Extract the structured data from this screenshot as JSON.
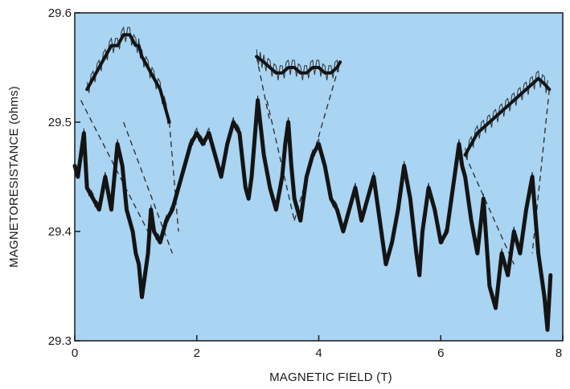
{
  "chart_data": {
    "type": "line",
    "title": "",
    "xlabel": "MAGNETIC FIELD (T)",
    "ylabel": "MAGNETORESISTANCE (ohms)",
    "xlim": [
      0,
      8
    ],
    "ylim": [
      29.3,
      29.6
    ],
    "xticks": [
      0,
      2,
      4,
      6,
      8
    ],
    "yticks": [
      29.3,
      29.4,
      29.5,
      29.6
    ],
    "xtick_labels": [
      "0",
      "2",
      "4",
      "6",
      "8"
    ],
    "ytick_labels": [
      "29.3",
      "29.4",
      "29.5",
      "29.6"
    ],
    "grid": false,
    "legend": "none",
    "colors": {
      "plot_background": "#a9d4f2",
      "trace": "#141414",
      "frame": "#1a1a1a"
    },
    "series": [
      {
        "x": [
          0,
          0.05,
          0.1,
          0.15,
          0.2,
          0.3,
          0.4,
          0.5,
          0.6,
          0.7,
          0.78,
          0.85,
          0.95,
          1.0,
          1.05,
          1.1,
          1.15,
          1.2,
          1.25,
          1.3,
          1.4,
          1.5,
          1.6,
          1.7,
          1.8,
          1.9,
          2.0,
          2.1,
          2.2,
          2.3,
          2.4,
          2.5,
          2.6,
          2.7,
          2.8,
          2.85,
          2.9,
          3.0,
          3.1,
          3.2,
          3.3,
          3.4,
          3.45,
          3.5,
          3.55,
          3.6,
          3.7,
          3.8,
          3.9,
          4.0,
          4.1,
          4.2,
          4.3,
          4.4,
          4.5,
          4.6,
          4.7,
          4.8,
          4.9,
          5.0,
          5.1,
          5.2,
          5.3,
          5.4,
          5.5,
          5.6,
          5.65,
          5.7,
          5.8,
          5.9,
          6.0,
          6.1,
          6.2,
          6.3,
          6.35,
          6.4,
          6.5,
          6.6,
          6.7,
          6.8,
          6.9,
          7.0,
          7.1,
          7.2,
          7.3,
          7.4,
          7.5,
          7.6,
          7.7,
          7.75,
          7.8
        ],
        "y": [
          29.46,
          29.45,
          29.47,
          29.49,
          29.44,
          29.43,
          29.42,
          29.45,
          29.42,
          29.48,
          29.46,
          29.42,
          29.4,
          29.38,
          29.37,
          29.34,
          29.36,
          29.38,
          29.42,
          29.4,
          29.39,
          29.41,
          29.42,
          29.44,
          29.46,
          29.48,
          29.49,
          29.48,
          29.49,
          29.47,
          29.45,
          29.48,
          29.5,
          29.49,
          29.44,
          29.43,
          29.45,
          29.52,
          29.47,
          29.44,
          29.42,
          29.45,
          29.48,
          29.5,
          29.46,
          29.43,
          29.41,
          29.45,
          29.47,
          29.48,
          29.46,
          29.43,
          29.42,
          29.4,
          29.42,
          29.44,
          29.41,
          29.43,
          29.45,
          29.41,
          29.37,
          29.39,
          29.42,
          29.46,
          29.43,
          29.38,
          29.36,
          29.4,
          29.44,
          29.42,
          29.39,
          29.4,
          29.44,
          29.48,
          29.46,
          29.45,
          29.41,
          29.38,
          29.43,
          29.35,
          29.33,
          29.38,
          29.36,
          29.4,
          29.38,
          29.42,
          29.45,
          29.38,
          29.34,
          29.31,
          29.36
        ]
      },
      {
        "x": [
          0.2,
          0.3,
          0.4,
          0.5,
          0.6,
          0.7,
          0.8,
          0.9,
          1.0,
          1.05,
          1.1,
          1.2,
          1.3,
          1.4,
          1.5,
          1.55
        ],
        "y": [
          29.53,
          29.54,
          29.55,
          29.56,
          29.57,
          29.57,
          29.58,
          29.58,
          29.57,
          29.57,
          29.56,
          29.55,
          29.54,
          29.53,
          29.51,
          29.5
        ]
      },
      {
        "x": [
          2.98,
          3.1,
          3.2,
          3.3,
          3.4,
          3.5,
          3.6,
          3.7,
          3.8,
          3.9,
          4.0,
          4.1,
          4.2,
          4.3,
          4.35
        ],
        "y": [
          29.56,
          29.555,
          29.55,
          29.545,
          29.545,
          29.55,
          29.55,
          29.545,
          29.545,
          29.55,
          29.55,
          29.545,
          29.545,
          29.55,
          29.555
        ]
      },
      {
        "x": [
          6.4,
          6.5,
          6.6,
          6.7,
          6.8,
          6.9,
          7.0,
          7.1,
          7.2,
          7.3,
          7.4,
          7.5,
          7.6,
          7.7,
          7.78
        ],
        "y": [
          29.47,
          29.48,
          29.49,
          29.495,
          29.5,
          29.505,
          29.51,
          29.515,
          29.52,
          29.525,
          29.53,
          29.535,
          29.54,
          29.535,
          29.53
        ]
      }
    ],
    "guides": [
      {
        "x": [
          0.1,
          1.2
        ],
        "y": [
          29.52,
          29.4
        ]
      },
      {
        "x": [
          0.8,
          1.6
        ],
        "y": [
          29.5,
          29.38
        ]
      },
      {
        "x": [
          1.55,
          1.7
        ],
        "y": [
          29.5,
          29.4
        ]
      },
      {
        "x": [
          2.98,
          3.2
        ],
        "y": [
          29.56,
          29.5
        ]
      },
      {
        "x": [
          3.15,
          3.6
        ],
        "y": [
          29.52,
          29.41
        ]
      },
      {
        "x": [
          3.6,
          4.35
        ],
        "y": [
          29.41,
          29.555
        ]
      },
      {
        "x": [
          6.4,
          7.2
        ],
        "y": [
          29.47,
          29.37
        ]
      },
      {
        "x": [
          7.78,
          7.5
        ],
        "y": [
          29.53,
          29.38
        ]
      }
    ]
  }
}
